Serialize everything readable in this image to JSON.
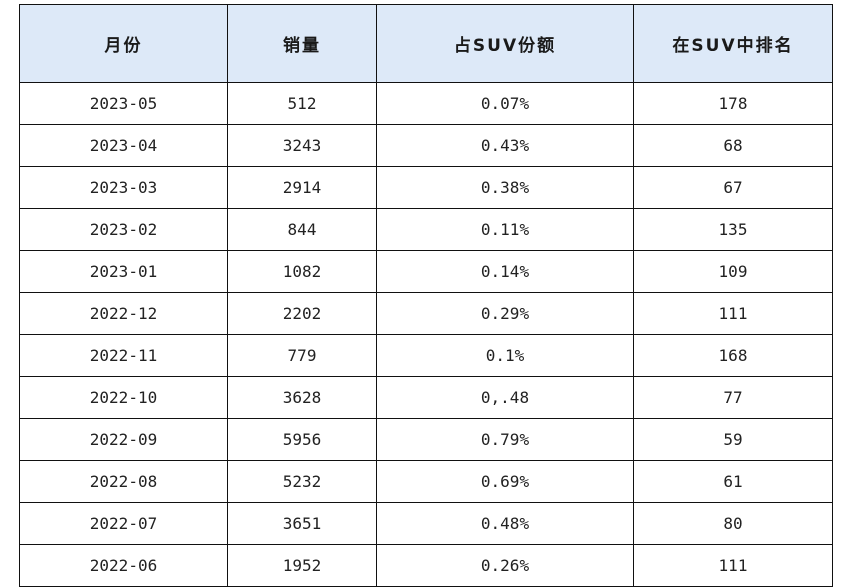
{
  "table": {
    "headers": [
      "月份",
      "销量",
      "占SUV份额",
      "在SUV中排名"
    ],
    "rows": [
      [
        "2023-05",
        "512",
        "0.07%",
        "178"
      ],
      [
        "2023-04",
        "3243",
        "0.43%",
        "68"
      ],
      [
        "2023-03",
        "2914",
        "0.38%",
        "67"
      ],
      [
        "2023-02",
        "844",
        "0.11%",
        "135"
      ],
      [
        "2023-01",
        "1082",
        "0.14%",
        "109"
      ],
      [
        "2022-12",
        "2202",
        "0.29%",
        "111"
      ],
      [
        "2022-11",
        "779",
        "0.1%",
        "168"
      ],
      [
        "2022-10",
        "3628",
        "0,.48",
        "77"
      ],
      [
        "2022-09",
        "5956",
        "0.79%",
        "59"
      ],
      [
        "2022-08",
        "5232",
        "0.69%",
        "61"
      ],
      [
        "2022-07",
        "3651",
        "0.48%",
        "80"
      ],
      [
        "2022-06",
        "1952",
        "0.26%",
        "111"
      ]
    ]
  },
  "colors": {
    "header_bg": "#dde9f8",
    "border": "#111111",
    "text": "#222222"
  }
}
